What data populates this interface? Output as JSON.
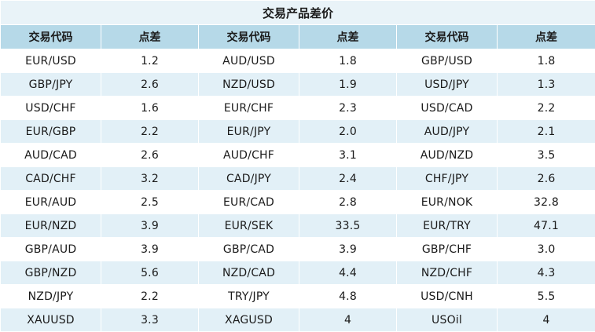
{
  "title": "交易产品差价",
  "headers": [
    "交易代码",
    "点差",
    "交易代码",
    "点差",
    "交易代码",
    "点差"
  ],
  "rows": [
    [
      "EUR/USD",
      "1.2",
      "AUD/USD",
      "1.8",
      "GBP/USD",
      "1.8"
    ],
    [
      "GBP/JPY",
      "2.6",
      "NZD/USD",
      "1.9",
      "USD/JPY",
      "1.3"
    ],
    [
      "USD/CHF",
      "1.6",
      "EUR/CHF",
      "2.3",
      "USD/CAD",
      "2.2"
    ],
    [
      "EUR/GBP",
      "2.2",
      "EUR/JPY",
      "2.0",
      "AUD/JPY",
      "2.1"
    ],
    [
      "AUD/CAD",
      "2.6",
      "AUD/CHF",
      "3.1",
      "AUD/NZD",
      "3.5"
    ],
    [
      "CAD/CHF",
      "3.2",
      "CAD/JPY",
      "2.4",
      "CHF/JPY",
      "2.6"
    ],
    [
      "EUR/AUD",
      "2.5",
      "EUR/CAD",
      "2.8",
      "EUR/NOK",
      "32.8"
    ],
    [
      "EUR/NZD",
      "3.9",
      "EUR/SEK",
      "33.5",
      "EUR/TRY",
      "47.1"
    ],
    [
      "GBP/AUD",
      "3.9",
      "GBP/CAD",
      "3.9",
      "GBP/CHF",
      "3.0"
    ],
    [
      "GBP/NZD",
      "5.6",
      "NZD/CAD",
      "4.4",
      "NZD/CHF",
      "4.3"
    ],
    [
      "NZD/JPY",
      "2.2",
      "TRY/JPY",
      "4.8",
      "USD/CNH",
      "5.5"
    ],
    [
      "XAUUSD",
      "3.3",
      "XAGUSD",
      "4",
      "USOil",
      "4"
    ]
  ],
  "colors": {
    "title_bg": "#e9f3f8",
    "header_bg": "#b6d9e8",
    "row_alt_bg": "#e2f0f7",
    "row_bg": "#ffffff"
  }
}
